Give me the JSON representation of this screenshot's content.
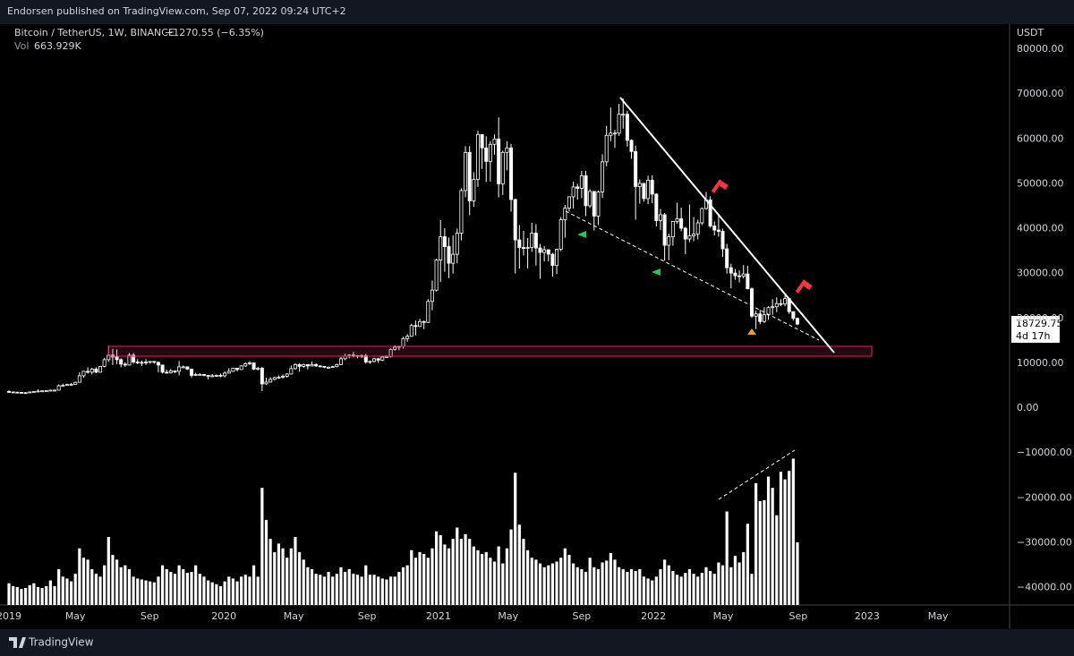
{
  "page": {
    "published": "Endorsen published on TradingView.com, Sep 07, 2022 09:24 UTC+2",
    "brand": "TradingView"
  },
  "chart_data": {
    "type": "candlestick",
    "title": "Bitcoin / TetherUS, 1W, BINANCE",
    "change": "−1270.55 (−6.35%)",
    "volume_label": "Vol",
    "volume_value": "663.929K",
    "y_axis_label": "USDT",
    "countdown": "4d 17h",
    "candle_color": "#ffffff",
    "volume_color": "#ffffff",
    "grid": false,
    "xlim": [
      -2.16,
      240.9
    ],
    "xticks": [
      {
        "value": 0,
        "label": "2019"
      },
      {
        "value": 16.0,
        "label": "May"
      },
      {
        "value": 33.9,
        "label": "Sep"
      },
      {
        "value": 51.8,
        "label": "2020"
      },
      {
        "value": 68.6,
        "label": "May"
      },
      {
        "value": 86.3,
        "label": "Sep"
      },
      {
        "value": 103.5,
        "label": "2021"
      },
      {
        "value": 120.3,
        "label": "May"
      },
      {
        "value": 138.0,
        "label": "Sep"
      },
      {
        "value": 155.3,
        "label": "2022"
      },
      {
        "value": 172.1,
        "label": "May"
      },
      {
        "value": 190.2,
        "label": "Sep"
      },
      {
        "value": 206.8,
        "label": "2023"
      },
      {
        "value": 223.9,
        "label": "May"
      }
    ],
    "ylim": [
      -43890,
      85590
    ],
    "yticks": [
      {
        "value": 80000,
        "label": "80000.00"
      },
      {
        "value": 70000,
        "label": "70000.00"
      },
      {
        "value": 60000,
        "label": "60000.00"
      },
      {
        "value": 50000,
        "label": "50000.00"
      },
      {
        "value": 40000,
        "label": "40000.00"
      },
      {
        "value": 30000,
        "label": "30000.00"
      },
      {
        "value": 20000,
        "label": "20000.00"
      },
      {
        "value": 10000,
        "label": "10000.00"
      },
      {
        "value": 0,
        "label": "0.00"
      },
      {
        "value": -10000,
        "label": "−10000.00"
      },
      {
        "value": -20000,
        "label": "−20000.00"
      },
      {
        "value": -30000,
        "label": "−30000.00"
      },
      {
        "value": -40000,
        "label": "−40000.00"
      }
    ],
    "volume_lim": [
      0,
      6150000
    ],
    "open": [
      3700,
      3600,
      3550,
      3500,
      3450,
      3400,
      3600,
      3700,
      3800,
      3850,
      3900,
      4000,
      4000,
      5000,
      5050,
      5250,
      5300,
      5750,
      7200,
      8200,
      8000,
      8700,
      8000,
      9300,
      10800,
      11800,
      11400,
      10800,
      9800,
      9600,
      11800,
      10300,
      10200,
      10100,
      10300,
      10400,
      10200,
      9600,
      8000,
      7900,
      8300,
      8200,
      9200,
      9200,
      8700,
      7300,
      7500,
      7500,
      7300,
      7100,
      7200,
      7300,
      7200,
      7800,
      8200,
      8900,
      8600,
      9400,
      9900,
      10100,
      8700,
      8900,
      5400,
      5800,
      6400,
      6800,
      6900,
      7100,
      7600,
      8800,
      9700,
      9300,
      9700,
      9400,
      9700,
      9400,
      9300,
      9100,
      9100,
      9250,
      9700,
      11000,
      11600,
      11800,
      11700,
      11500,
      11700,
      10300,
      10400,
      11000,
      10700,
      11400,
      11500,
      13100,
      13600,
      13800,
      15500,
      16000,
      18400,
      18200,
      19300,
      19100,
      23800,
      26300,
      33000,
      38200,
      36000,
      32300,
      34300,
      39000,
      48500,
      57000,
      46200,
      51000,
      61000,
      58000,
      55000,
      58800,
      60000,
      50000,
      57000,
      58000,
      46500,
      37500,
      35800,
      35600,
      35800,
      39000,
      35700,
      34700,
      35300,
      34300,
      31800,
      35400,
      42000,
      44600,
      47100,
      49300,
      49000,
      51800,
      45100,
      48300,
      42800,
      48200,
      54900,
      60800,
      61300,
      61300,
      65500,
      65500,
      59700,
      57200,
      49400,
      50100,
      46700,
      50800,
      47700,
      41800,
      43100,
      36300,
      38200,
      41600,
      42200,
      40100,
      37700,
      38400,
      38800,
      41300,
      44500,
      46400,
      40600,
      39700,
      39400,
      35500,
      31300,
      30100,
      29500,
      29400,
      29900,
      26600,
      20500,
      21000,
      19300,
      20800,
      22400,
      22600,
      23300,
      23200,
      24400,
      21500,
      20000.3
    ],
    "high": [
      4000,
      3700,
      3650,
      3600,
      3550,
      3700,
      3800,
      4200,
      3950,
      4000,
      4100,
      4150,
      5300,
      5450,
      5450,
      5600,
      5900,
      8000,
      8300,
      9100,
      9000,
      9100,
      9400,
      11200,
      13900,
      13200,
      13100,
      11100,
      10200,
      12300,
      12300,
      10900,
      10600,
      10900,
      10500,
      10500,
      10400,
      9700,
      8600,
      8700,
      8400,
      10500,
      9500,
      9300,
      8800,
      7900,
      7800,
      7600,
      7400,
      7600,
      7500,
      7700,
      8200,
      8900,
      9000,
      8900,
      9600,
      10200,
      10500,
      10200,
      9200,
      9200,
      6800,
      6900,
      7000,
      7300,
      7500,
      7800,
      9500,
      10000,
      10000,
      9900,
      9800,
      10400,
      10000,
      9600,
      9400,
      9300,
      9400,
      9900,
      11400,
      12100,
      12000,
      12500,
      11800,
      12000,
      12100,
      10600,
      11200,
      11200,
      11500,
      11800,
      13300,
      14000,
      13900,
      15900,
      16500,
      18800,
      19500,
      19900,
      19500,
      24300,
      28400,
      33300,
      41900,
      40100,
      38000,
      38500,
      40000,
      49000,
      58400,
      58400,
      52600,
      61800,
      61000,
      60600,
      59500,
      61000,
      64800,
      57400,
      59500,
      58900,
      46700,
      40800,
      39500,
      37900,
      41300,
      41000,
      36600,
      36100,
      35400,
      34600,
      35500,
      42600,
      45300,
      47200,
      50500,
      50000,
      52900,
      52900,
      48800,
      48400,
      48500,
      56600,
      62900,
      67000,
      62000,
      67800,
      69000,
      66300,
      59900,
      58500,
      51000,
      50200,
      51800,
      51900,
      47900,
      44400,
      43500,
      38900,
      41700,
      45800,
      44700,
      40400,
      45400,
      42600,
      42000,
      44700,
      48200,
      47200,
      41600,
      42900,
      40000,
      36600,
      32200,
      31000,
      30700,
      31900,
      31700,
      26900,
      21700,
      21900,
      22500,
      22700,
      24300,
      24700,
      24300,
      25200,
      24400,
      21600,
      20200
    ],
    "low": [
      3500,
      3450,
      3400,
      3350,
      3350,
      3380,
      3550,
      3650,
      3700,
      3800,
      3850,
      3950,
      3950,
      4900,
      5000,
      5200,
      5250,
      5700,
      6800,
      7700,
      7500,
      7800,
      7900,
      9100,
      10300,
      9600,
      9800,
      9100,
      9200,
      9500,
      9900,
      9800,
      9400,
      9600,
      9900,
      9900,
      8000,
      7700,
      7700,
      7700,
      7800,
      7300,
      8900,
      8500,
      6800,
      7200,
      7300,
      7100,
      6400,
      6900,
      7000,
      6900,
      6850,
      7700,
      8100,
      8200,
      8500,
      9200,
      9600,
      8500,
      8400,
      3800,
      5200,
      5700,
      6200,
      6500,
      6600,
      6800,
      7500,
      8600,
      8100,
      9000,
      8600,
      9300,
      9200,
      9100,
      8900,
      8900,
      9000,
      9100,
      9600,
      10700,
      11100,
      11300,
      11100,
      11200,
      9900,
      9900,
      10200,
      10100,
      10500,
      11200,
      11300,
      12800,
      12900,
      13300,
      14800,
      15900,
      16200,
      18100,
      17600,
      19000,
      21800,
      26000,
      28100,
      30400,
      29000,
      30000,
      32300,
      37400,
      47000,
      43000,
      44900,
      49300,
      53300,
      50400,
      50500,
      56500,
      47000,
      47500,
      53000,
      43800,
      30000,
      31100,
      34000,
      31100,
      34800,
      31800,
      28800,
      32700,
      32700,
      29300,
      29900,
      35000,
      38000,
      43800,
      44500,
      46500,
      46800,
      42800,
      44600,
      39600,
      40800,
      46900,
      53900,
      59500,
      58000,
      60700,
      62300,
      58300,
      55600,
      42000,
      45600,
      46000,
      45500,
      45700,
      40500,
      39700,
      32900,
      33000,
      36200,
      41100,
      39400,
      34300,
      37000,
      37200,
      37600,
      40800,
      44200,
      40200,
      38500,
      38200,
      33700,
      30000,
      26700,
      28600,
      28000,
      28900,
      26500,
      20100,
      17600,
      18700,
      19000,
      19700,
      20800,
      21400,
      22700,
      22700,
      21000,
      19500,
      18500
    ],
    "close": [
      3600,
      3550,
      3500,
      3450,
      3400,
      3600,
      3700,
      3800,
      3850,
      3900,
      4000,
      4000,
      5000,
      5050,
      5250,
      5300,
      5750,
      7200,
      8200,
      8000,
      8700,
      8000,
      9300,
      10800,
      11800,
      11400,
      10800,
      9800,
      9600,
      11800,
      10300,
      10200,
      10100,
      10300,
      10400,
      10200,
      9600,
      8000,
      7900,
      8300,
      8200,
      9200,
      9200,
      8700,
      7300,
      7500,
      7500,
      7300,
      7100,
      7200,
      7300,
      7200,
      7800,
      8200,
      8900,
      8600,
      9400,
      9900,
      10100,
      8700,
      8900,
      5400,
      5800,
      6400,
      6800,
      6900,
      7100,
      7600,
      8800,
      9700,
      9300,
      9700,
      9400,
      9700,
      9400,
      9300,
      9100,
      9100,
      9250,
      9700,
      11000,
      11600,
      11800,
      11700,
      11500,
      11700,
      10300,
      10400,
      11000,
      10700,
      11400,
      11500,
      13100,
      13600,
      13800,
      15500,
      16000,
      18400,
      18200,
      19300,
      19100,
      23800,
      26300,
      33000,
      38200,
      36000,
      32300,
      34300,
      39000,
      48500,
      57000,
      46200,
      51000,
      61000,
      58000,
      55000,
      58800,
      60000,
      50000,
      57000,
      58000,
      46500,
      37500,
      35800,
      35600,
      35800,
      39000,
      35700,
      34700,
      35300,
      34300,
      31800,
      35400,
      42000,
      44600,
      47100,
      49300,
      49000,
      51800,
      45100,
      48300,
      42800,
      48200,
      54900,
      60800,
      61300,
      61300,
      65500,
      65500,
      59700,
      57200,
      49400,
      50100,
      46700,
      50800,
      47700,
      41800,
      43100,
      36300,
      38200,
      41600,
      42200,
      40100,
      37700,
      38400,
      38800,
      41300,
      44500,
      46400,
      40600,
      39700,
      39400,
      35500,
      31300,
      30100,
      29500,
      29400,
      29900,
      26600,
      20500,
      21000,
      19300,
      20800,
      22400,
      22600,
      23300,
      23200,
      24400,
      21500,
      20000.3,
      18729.75
    ],
    "volume": [
      230000,
      200000,
      190000,
      170000,
      180000,
      210000,
      230000,
      190000,
      180000,
      200000,
      260000,
      200000,
      380000,
      300000,
      280000,
      250000,
      330000,
      600000,
      500000,
      480000,
      380000,
      330000,
      300000,
      420000,
      720000,
      530000,
      480000,
      400000,
      420000,
      380000,
      300000,
      280000,
      270000,
      260000,
      250000,
      240000,
      300000,
      420000,
      380000,
      350000,
      330000,
      420000,
      380000,
      340000,
      350000,
      420000,
      330000,
      300000,
      260000,
      240000,
      220000,
      200000,
      250000,
      300000,
      280000,
      250000,
      300000,
      320000,
      300000,
      420000,
      300000,
      1240000,
      900000,
      700000,
      560000,
      650000,
      600000,
      500000,
      600000,
      720000,
      560000,
      480000,
      400000,
      380000,
      330000,
      320000,
      300000,
      350000,
      300000,
      330000,
      400000,
      350000,
      380000,
      330000,
      320000,
      300000,
      420000,
      320000,
      320000,
      300000,
      280000,
      270000,
      300000,
      300000,
      350000,
      400000,
      420000,
      580000,
      500000,
      560000,
      540000,
      500000,
      600000,
      780000,
      740000,
      640000,
      600000,
      700000,
      820000,
      700000,
      750000,
      700000,
      620000,
      580000,
      540000,
      560000,
      500000,
      460000,
      620000,
      440000,
      600000,
      800000,
      1400000,
      850000,
      700000,
      580000,
      500000,
      480000,
      440000,
      400000,
      420000,
      440000,
      460000,
      500000,
      600000,
      530000,
      440000,
      400000,
      380000,
      350000,
      500000,
      400000,
      380000,
      450000,
      470000,
      550000,
      480000,
      400000,
      380000,
      350000,
      380000,
      360000,
      380000,
      300000,
      280000,
      260000,
      300000,
      380000,
      480000,
      420000,
      360000,
      320000,
      300000,
      340000,
      380000,
      330000,
      300000,
      340000,
      400000,
      360000,
      330000,
      450000,
      420000,
      990000,
      400000,
      520000,
      450000,
      560000,
      860000,
      330000,
      1290000,
      1100000,
      1110000,
      1360000,
      1240000,
      950000,
      1410000,
      1330000,
      1420000,
      1550000,
      663929
    ]
  }
}
